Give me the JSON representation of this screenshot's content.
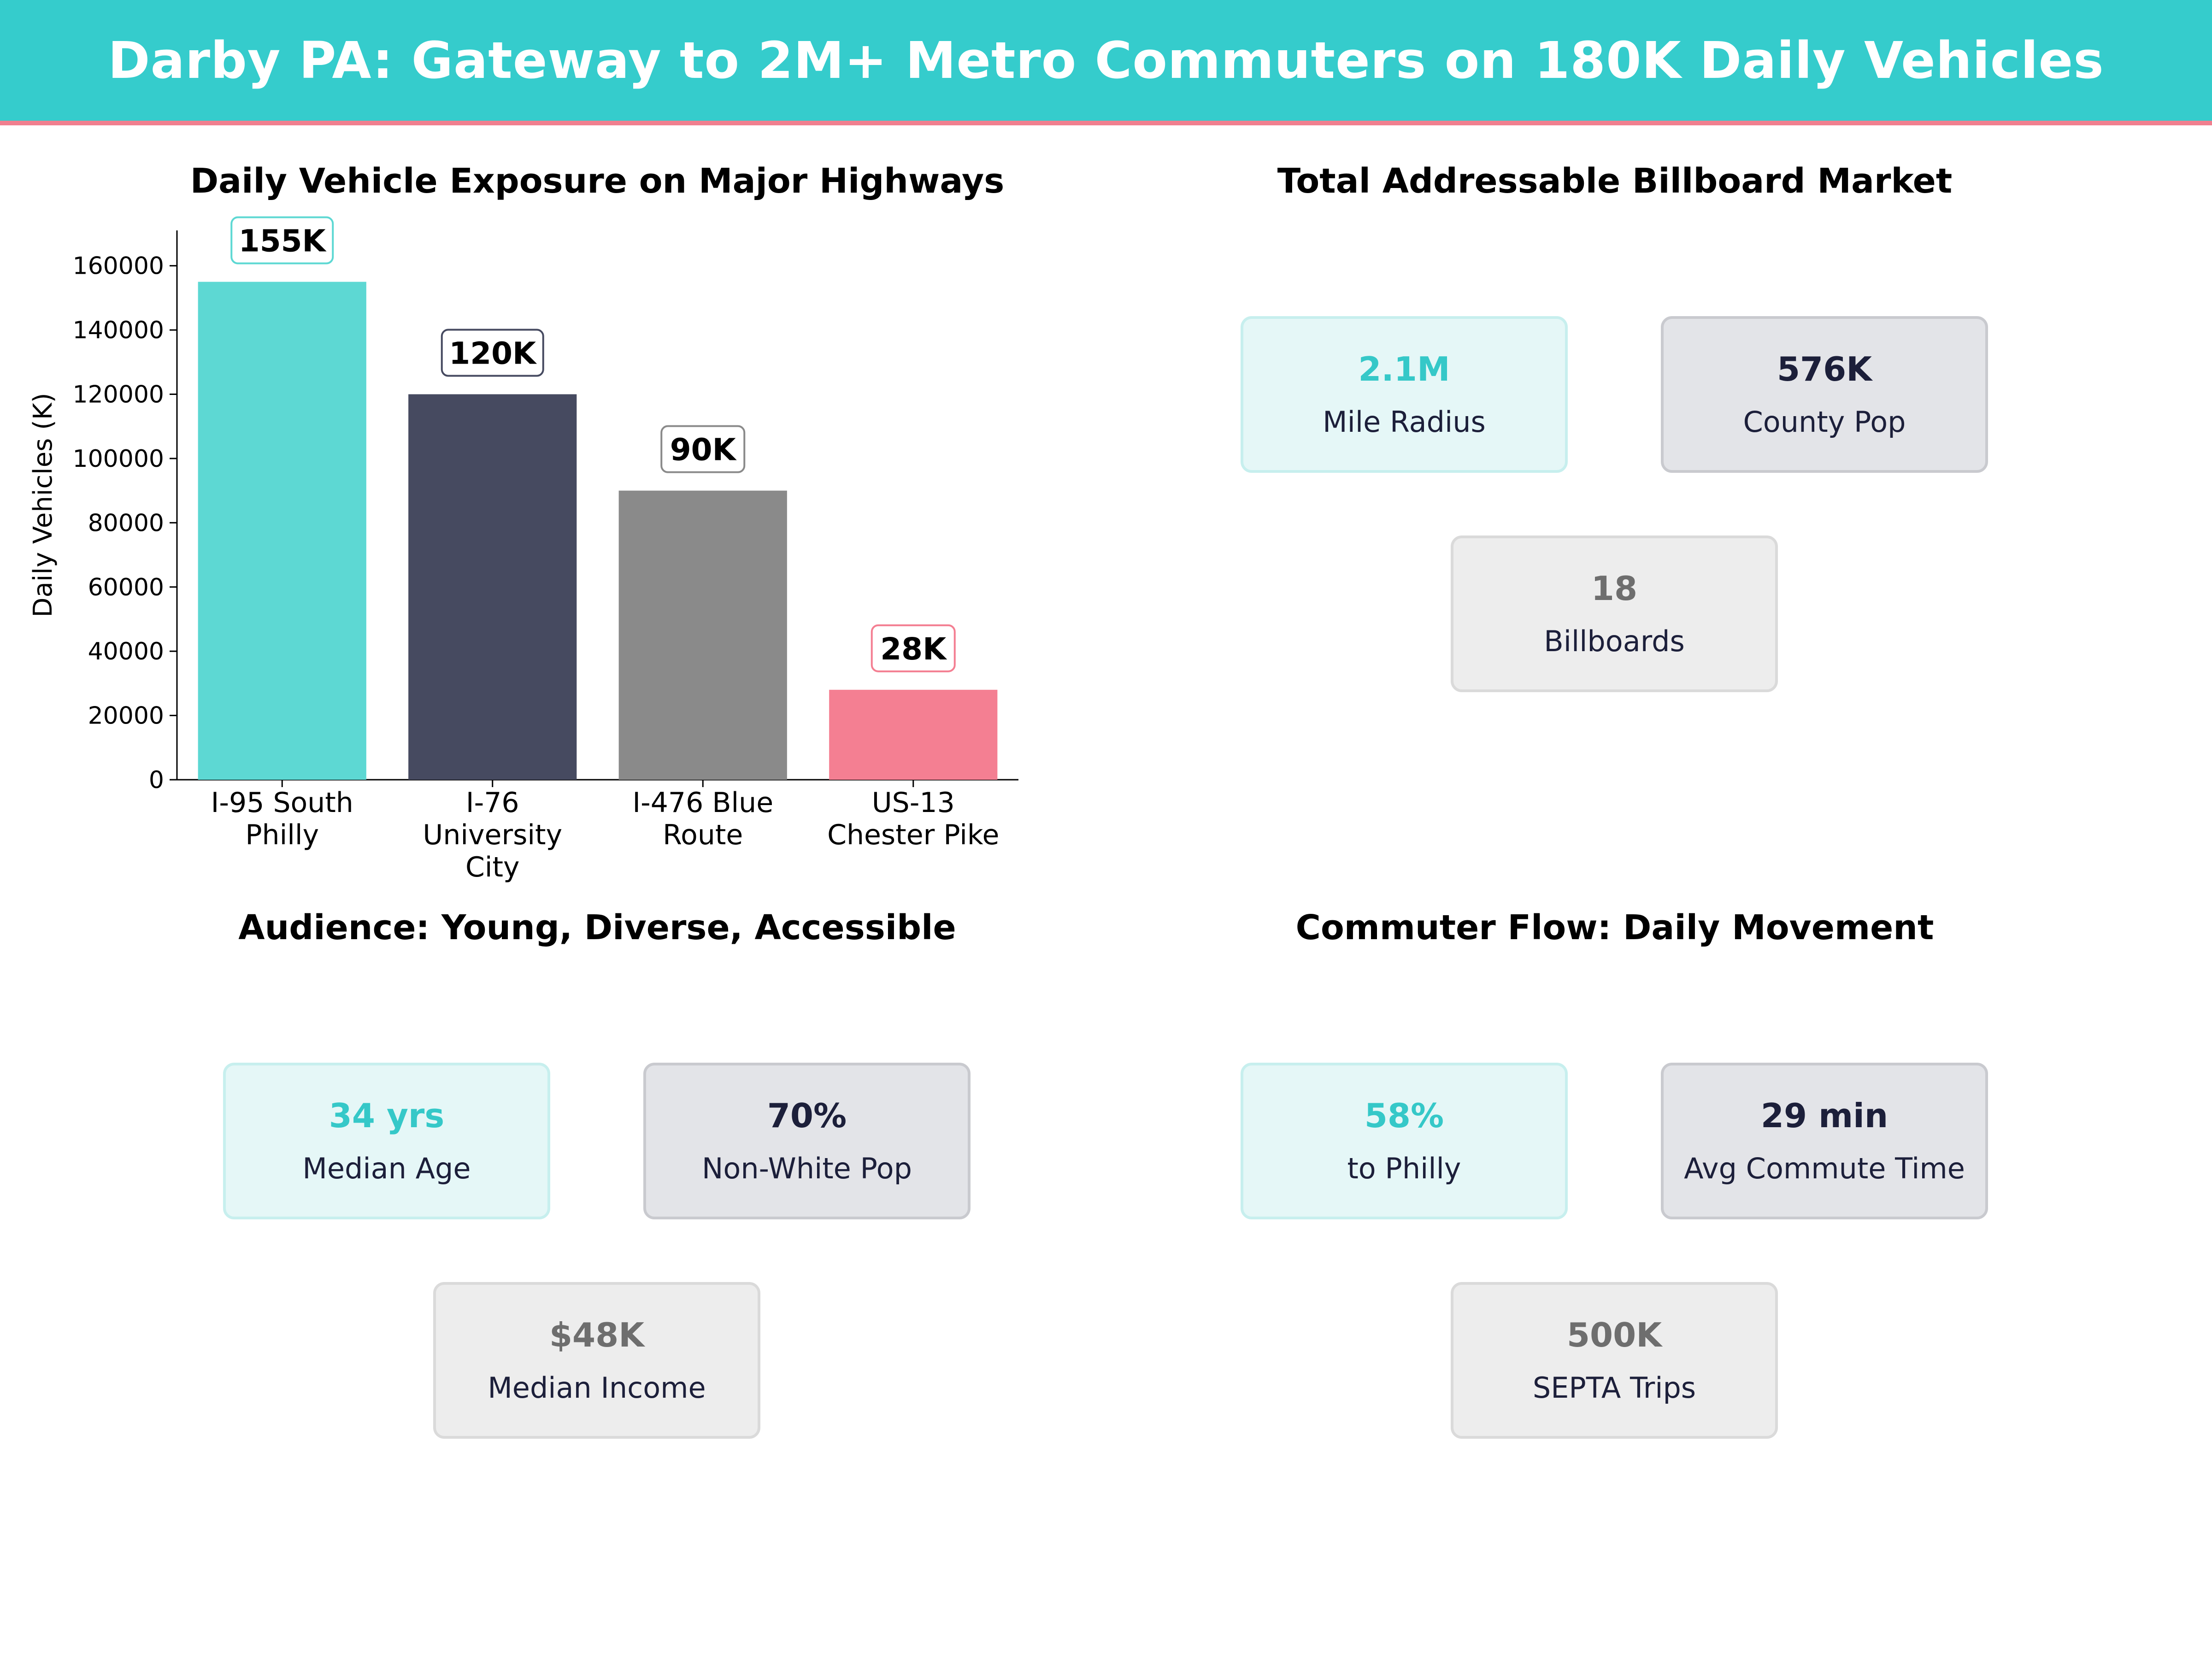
{
  "header": {
    "title": "Darby PA: Gateway to 2M+ Metro Commuters on 180K Daily Vehicles"
  },
  "panels": {
    "highways": {
      "title": "Daily Vehicle Exposure on Major Highways"
    },
    "market": {
      "title": "Total Addressable Billboard Market",
      "cards": [
        {
          "value": "2.1M",
          "label": "Mile Radius"
        },
        {
          "value": "576K",
          "label": "County Pop"
        },
        {
          "value": "18",
          "label": "Billboards"
        }
      ]
    },
    "audience": {
      "title": "Audience: Young, Diverse, Accessible",
      "cards": [
        {
          "value": "34 yrs",
          "label": "Median Age"
        },
        {
          "value": "70%",
          "label": "Non-White Pop"
        },
        {
          "value": "$48K",
          "label": "Median Income"
        }
      ]
    },
    "flow": {
      "title": "Commuter Flow: Daily Movement",
      "cards": [
        {
          "value": "58%",
          "label": "to Philly"
        },
        {
          "value": "29 min",
          "label": "Avg Commute Time"
        },
        {
          "value": "500K",
          "label": "SEPTA  Trips"
        }
      ]
    }
  },
  "colors": {
    "banner": "#35CCCC",
    "banner_border": "#F07F8F",
    "teal": "#5DD8D3",
    "navy": "#464A60",
    "gray": "#8A8A8A",
    "pink": "#F47F92",
    "card_value_teal": "#35C8C8",
    "card_value_navy": "#1C1F3A",
    "card_value_gray": "#6E6E6E"
  },
  "chart_data": {
    "type": "bar",
    "title": "Daily Vehicle Exposure on Major Highways",
    "xlabel": "",
    "ylabel": "Daily Vehicles (K)",
    "ylim": [
      0,
      171000
    ],
    "yticks": [
      0,
      20000,
      40000,
      60000,
      80000,
      100000,
      120000,
      140000,
      160000
    ],
    "categories": [
      [
        "I-95 South",
        "Philly"
      ],
      [
        "I-76",
        "University",
        "City"
      ],
      [
        "I-476 Blue",
        "Route"
      ],
      [
        "US-13",
        "Chester Pike"
      ]
    ],
    "values": [
      155000,
      120000,
      90000,
      28000
    ],
    "data_labels": [
      "155K",
      "120K",
      "90K",
      "28K"
    ],
    "bar_colors": [
      "#5DD8D3",
      "#464A60",
      "#8A8A8A",
      "#F47F92"
    ],
    "label_border_colors": [
      "#5DD8D3",
      "#464A60",
      "#8A8A8A",
      "#F47F92"
    ],
    "grid": false,
    "legend": "none"
  }
}
